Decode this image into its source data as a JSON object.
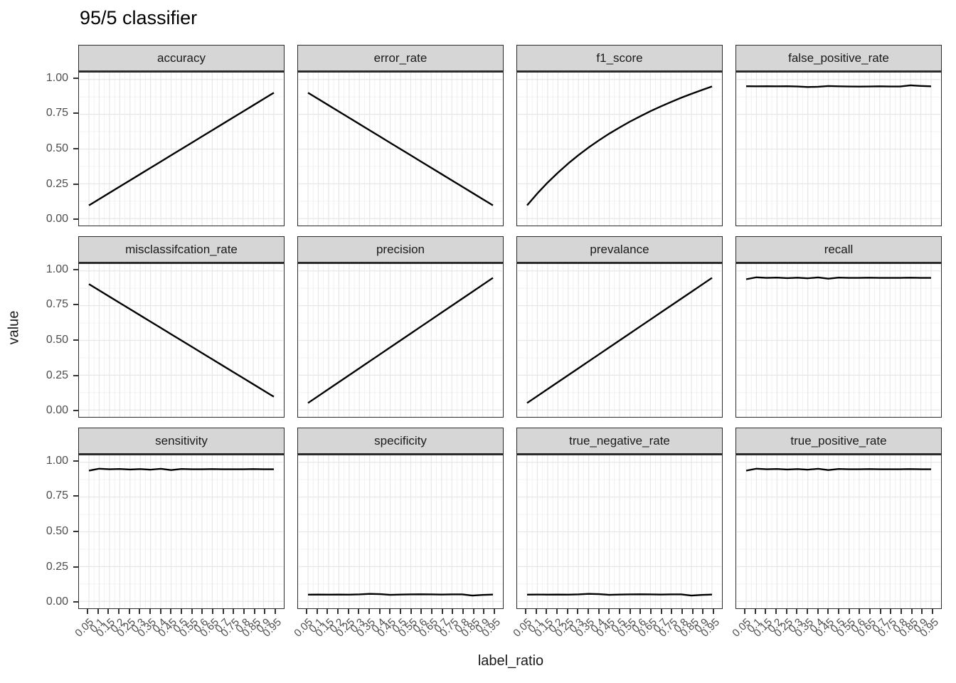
{
  "title": "95/5 classifier",
  "axes": {
    "x_title": "label_ratio",
    "y_title": "value",
    "y_ticks": [
      {
        "value": 1.0,
        "label": "1.00"
      },
      {
        "value": 0.75,
        "label": "0.75"
      },
      {
        "value": 0.5,
        "label": "0.50"
      },
      {
        "value": 0.25,
        "label": "0.25"
      },
      {
        "value": 0.0,
        "label": "0.00"
      }
    ],
    "x_tick_labels": [
      "0.05",
      "0.1",
      "0.15",
      "0.2",
      "0.25",
      "0.3",
      "0.35",
      "0.4",
      "0.45",
      "0.5",
      "0.55",
      "0.6",
      "0.65",
      "0.7",
      "0.75",
      "0.8",
      "0.85",
      "0.9",
      "0.95"
    ]
  },
  "style": {
    "line_color": "#000000",
    "strip_bg": "#d6d6d6",
    "panel_border": "#2b2b2b",
    "grid_major": "#e7e7e7",
    "grid_minor": "#f0f0f0",
    "axis_text": "#4d4d4d"
  },
  "chart_data": {
    "type": "line",
    "title": "95/5 classifier",
    "xlabel": "label_ratio",
    "ylabel": "value",
    "ylim": [
      0,
      1
    ],
    "grid": "on",
    "legend": "none",
    "facet_layout": {
      "rows": 3,
      "cols": 4
    },
    "x": [
      0.05,
      0.1,
      0.15,
      0.2,
      0.25,
      0.3,
      0.35,
      0.4,
      0.45,
      0.5,
      0.55,
      0.6,
      0.65,
      0.7,
      0.75,
      0.8,
      0.85,
      0.9,
      0.95
    ],
    "facets": [
      {
        "name": "accuracy",
        "values": [
          0.095,
          0.14,
          0.185,
          0.23,
          0.275,
          0.32,
          0.365,
          0.41,
          0.455,
          0.5,
          0.545,
          0.59,
          0.635,
          0.68,
          0.725,
          0.77,
          0.815,
          0.86,
          0.905
        ]
      },
      {
        "name": "error_rate",
        "values": [
          0.905,
          0.86,
          0.815,
          0.77,
          0.725,
          0.68,
          0.635,
          0.59,
          0.545,
          0.5,
          0.455,
          0.41,
          0.365,
          0.32,
          0.275,
          0.23,
          0.185,
          0.14,
          0.095
        ]
      },
      {
        "name": "f1_score",
        "values": [
          0.095,
          0.181,
          0.259,
          0.33,
          0.396,
          0.456,
          0.512,
          0.563,
          0.611,
          0.655,
          0.697,
          0.735,
          0.772,
          0.806,
          0.838,
          0.869,
          0.897,
          0.924,
          0.95
        ]
      },
      {
        "name": "false_positive_rate",
        "values": [
          0.952,
          0.951,
          0.952,
          0.951,
          0.952,
          0.95,
          0.946,
          0.948,
          0.953,
          0.951,
          0.95,
          0.949,
          0.95,
          0.951,
          0.95,
          0.95,
          0.958,
          0.954,
          0.951
        ]
      },
      {
        "name": "misclassifcation_rate",
        "values": [
          0.905,
          0.86,
          0.815,
          0.77,
          0.725,
          0.68,
          0.635,
          0.59,
          0.545,
          0.5,
          0.455,
          0.41,
          0.365,
          0.32,
          0.275,
          0.23,
          0.185,
          0.14,
          0.095
        ]
      },
      {
        "name": "precision",
        "values": [
          0.05,
          0.1,
          0.15,
          0.2,
          0.25,
          0.3,
          0.35,
          0.4,
          0.45,
          0.5,
          0.55,
          0.6,
          0.65,
          0.7,
          0.75,
          0.8,
          0.85,
          0.9,
          0.95
        ]
      },
      {
        "name": "prevalance",
        "values": [
          0.05,
          0.1,
          0.15,
          0.2,
          0.25,
          0.3,
          0.35,
          0.4,
          0.45,
          0.5,
          0.55,
          0.6,
          0.65,
          0.7,
          0.75,
          0.8,
          0.85,
          0.9,
          0.95
        ]
      },
      {
        "name": "recall",
        "values": [
          0.94,
          0.954,
          0.95,
          0.952,
          0.948,
          0.951,
          0.947,
          0.953,
          0.944,
          0.952,
          0.95,
          0.95,
          0.951,
          0.95,
          0.95,
          0.95,
          0.951,
          0.95,
          0.95
        ]
      },
      {
        "name": "sensitivity",
        "values": [
          0.94,
          0.954,
          0.95,
          0.952,
          0.948,
          0.951,
          0.947,
          0.953,
          0.944,
          0.952,
          0.95,
          0.95,
          0.951,
          0.95,
          0.95,
          0.95,
          0.951,
          0.95,
          0.95
        ]
      },
      {
        "name": "specificity",
        "values": [
          0.048,
          0.049,
          0.048,
          0.049,
          0.048,
          0.05,
          0.054,
          0.052,
          0.047,
          0.049,
          0.05,
          0.051,
          0.05,
          0.049,
          0.05,
          0.05,
          0.042,
          0.046,
          0.049
        ]
      },
      {
        "name": "true_negative_rate",
        "values": [
          0.048,
          0.049,
          0.048,
          0.049,
          0.048,
          0.05,
          0.054,
          0.052,
          0.047,
          0.049,
          0.05,
          0.051,
          0.05,
          0.049,
          0.05,
          0.05,
          0.042,
          0.046,
          0.049
        ]
      },
      {
        "name": "true_positive_rate",
        "values": [
          0.94,
          0.954,
          0.95,
          0.952,
          0.948,
          0.951,
          0.947,
          0.953,
          0.944,
          0.952,
          0.95,
          0.95,
          0.951,
          0.95,
          0.95,
          0.95,
          0.951,
          0.95,
          0.95
        ]
      }
    ]
  }
}
